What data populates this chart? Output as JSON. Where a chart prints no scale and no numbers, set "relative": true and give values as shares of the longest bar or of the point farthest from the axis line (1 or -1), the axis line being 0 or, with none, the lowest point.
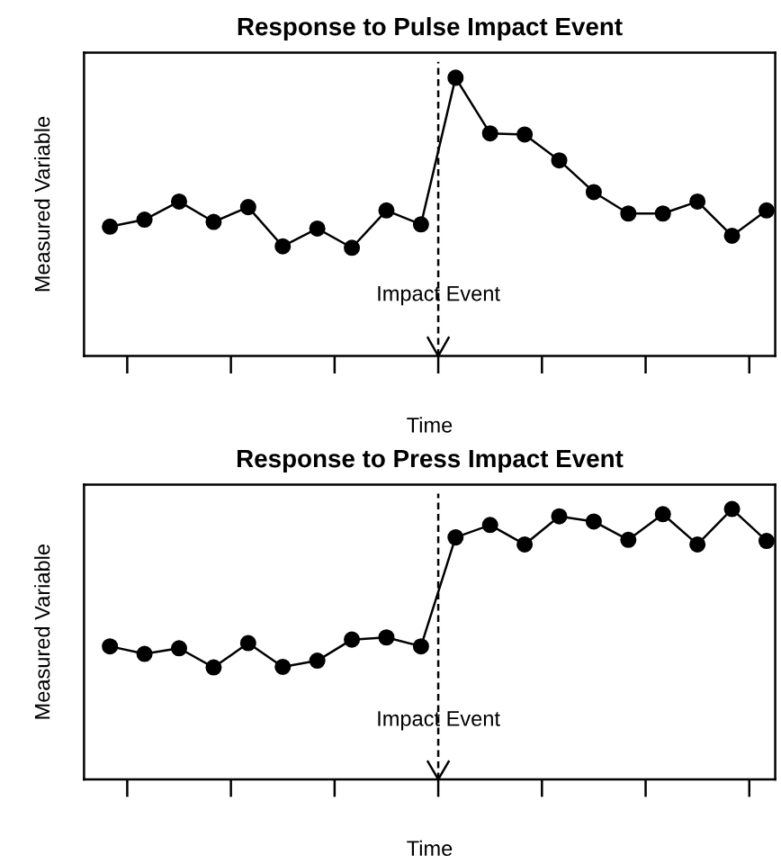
{
  "chart_data": [
    {
      "type": "line",
      "title": "Response to Pulse Impact Event",
      "xlabel": "Time",
      "ylabel": "Measured Variable",
      "relative": true,
      "marker": "circle",
      "line_style": "solid",
      "categories": [
        null,
        null,
        null,
        null,
        null,
        null,
        null,
        null,
        null,
        null,
        null,
        null,
        null,
        null,
        null,
        null,
        null,
        null,
        null,
        null
      ],
      "series": [
        {
          "color": "#000000",
          "values": [
            0.465,
            0.49,
            0.555,
            0.482,
            0.535,
            0.394,
            0.458,
            0.389,
            0.523,
            0.473,
            1,
            0.8,
            0.796,
            0.703,
            0.589,
            0.512,
            0.512,
            0.555,
            0.432,
            0.523
          ]
        }
      ],
      "annotations": [
        "Impact Event"
      ]
    },
    {
      "type": "line",
      "title": "Response to Press Impact Event",
      "xlabel": "Time",
      "ylabel": "Measured Variable",
      "relative": true,
      "marker": "circle",
      "line_style": "solid",
      "categories": [
        null,
        null,
        null,
        null,
        null,
        null,
        null,
        null,
        null,
        null,
        null,
        null,
        null,
        null,
        null,
        null,
        null,
        null,
        null,
        null
      ],
      "series": [
        {
          "color": "#000000",
          "values": [
            0.492,
            0.464,
            0.485,
            0.414,
            0.504,
            0.416,
            0.439,
            0.517,
            0.525,
            0.492,
            0.895,
            0.941,
            0.869,
            0.973,
            0.954,
            0.886,
            0.981,
            0.869,
            1,
            0.882
          ]
        }
      ],
      "annotations": [
        "Impact Event"
      ]
    }
  ]
}
